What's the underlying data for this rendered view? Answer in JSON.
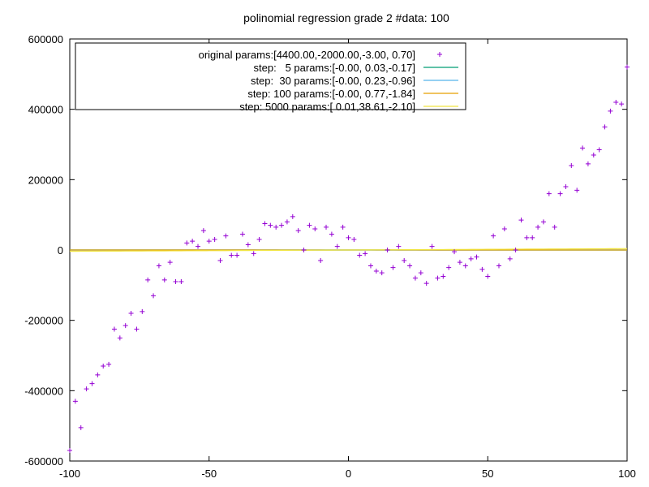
{
  "chart_data": {
    "type": "scatter",
    "title": "polinomial regression grade 2 #data: 100",
    "xlabel": "",
    "ylabel": "",
    "xlim": [
      -100,
      100
    ],
    "ylim": [
      -600000,
      600000
    ],
    "x_ticks": [
      -100,
      -50,
      0,
      50,
      100
    ],
    "y_ticks": [
      -600000,
      -400000,
      -200000,
      0,
      200000,
      400000,
      600000
    ],
    "grid": false,
    "legend_position": "top-left",
    "series": [
      {
        "name": "original params:[4400.00,-2000.00,-3.00, 0.70]",
        "kind": "points",
        "color": "#9400d3",
        "x": [
          -100,
          -98,
          -96,
          -94,
          -92,
          -90,
          -88,
          -86,
          -84,
          -82,
          -80,
          -78,
          -76,
          -74,
          -72,
          -70,
          -68,
          -66,
          -64,
          -62,
          -60,
          -58,
          -56,
          -54,
          -52,
          -50,
          -48,
          -46,
          -44,
          -42,
          -40,
          -38,
          -36,
          -34,
          -32,
          -30,
          -28,
          -26,
          -24,
          -22,
          -20,
          -18,
          -16,
          -14,
          -12,
          -10,
          -8,
          -6,
          -4,
          -2,
          0,
          2,
          4,
          6,
          8,
          10,
          12,
          14,
          16,
          18,
          20,
          22,
          24,
          26,
          28,
          30,
          32,
          34,
          36,
          38,
          40,
          42,
          44,
          46,
          48,
          50,
          52,
          54,
          56,
          58,
          60,
          62,
          64,
          66,
          68,
          70,
          72,
          74,
          76,
          78,
          80,
          82,
          84,
          86,
          88,
          90,
          92,
          94,
          96,
          98,
          100
        ],
        "y": [
          -570000,
          -430000,
          -505000,
          -395000,
          -380000,
          -355000,
          -330000,
          -325000,
          -225000,
          -250000,
          -215000,
          -180000,
          -225000,
          -175000,
          -85000,
          -130000,
          -45000,
          -85000,
          -35000,
          -90000,
          -90000,
          20000,
          25000,
          10000,
          55000,
          25000,
          30000,
          -30000,
          40000,
          -15000,
          -15000,
          45000,
          15000,
          -10000,
          30000,
          75000,
          70000,
          65000,
          70000,
          80000,
          95000,
          55000,
          0,
          70000,
          60000,
          -30000,
          65000,
          45000,
          10000,
          65000,
          35000,
          30000,
          -15000,
          -10000,
          -45000,
          -60000,
          -65000,
          0,
          -50000,
          10000,
          -30000,
          -45000,
          -80000,
          -65000,
          -95000,
          10000,
          -80000,
          -75000,
          -50000,
          -5000,
          -35000,
          -45000,
          -25000,
          -20000,
          -55000,
          -75000,
          40000,
          -45000,
          60000,
          -25000,
          0,
          85000,
          35000,
          35000,
          65000,
          80000,
          160000,
          65000,
          160000,
          180000,
          240000,
          170000,
          290000,
          245000,
          270000,
          285000,
          350000,
          395000,
          420000,
          415000,
          520000
        ]
      },
      {
        "name": "step:   5 params:[-0.00, 0.03,-0.17]",
        "kind": "line",
        "color": "#009e73",
        "coefficients": [
          -0.17,
          0.03,
          -0.0
        ]
      },
      {
        "name": "step:  30 params:[-0.00, 0.23,-0.96]",
        "kind": "line",
        "color": "#56b4e9",
        "coefficients": [
          -0.96,
          0.23,
          -0.0
        ]
      },
      {
        "name": "step: 100 params:[-0.00, 0.77,-1.84]",
        "kind": "line",
        "color": "#e69f00",
        "coefficients": [
          -1.84,
          0.77,
          -0.0
        ]
      },
      {
        "name": "step: 5000 params:[ 0.01,38.61,-2.10]",
        "kind": "line",
        "color": "#f0e442",
        "coefficients": [
          -2.1,
          38.61,
          0.01
        ]
      }
    ]
  }
}
